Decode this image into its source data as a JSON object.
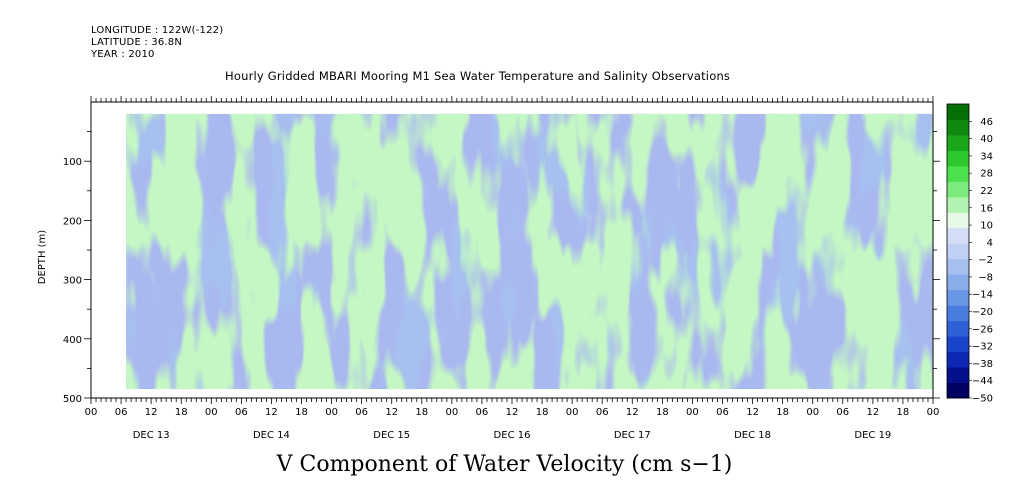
{
  "header": {
    "longitude": "LONGITUDE : 122W(-122)",
    "latitude": "LATITUDE : 36.8N",
    "year": "YEAR : 2010",
    "title": "Hourly Gridded MBARI Mooring M1 Sea Water Temperature and Salinity Observations",
    "bottom_title": "V Component of Water Velocity (cm s−1)"
  },
  "chart_data": {
    "type": "heatmap",
    "title": "Hourly Gridded MBARI Mooring M1 Sea Water Temperature and Salinity Observations",
    "variable": "V Component of Water Velocity (cm s−1)",
    "ylabel": "DEPTH (m)",
    "ylim": [
      500,
      0
    ],
    "y_reversed": true,
    "y_ticks": [
      100,
      200,
      300,
      400,
      500
    ],
    "x_start_hour": 0,
    "x_end_hour": 168,
    "x_hour_labels": [
      "00",
      "06",
      "12",
      "18",
      "00",
      "06",
      "12",
      "18",
      "00",
      "06",
      "12",
      "18",
      "00",
      "06",
      "12",
      "18",
      "00",
      "06",
      "12",
      "18",
      "00",
      "06",
      "12",
      "18",
      "00",
      "06",
      "12",
      "18",
      "00"
    ],
    "day_labels": [
      "DEC 13",
      "DEC 14",
      "DEC 15",
      "DEC 16",
      "DEC 17",
      "DEC 18",
      "DEC 19"
    ],
    "data_start_hour": 7,
    "data_depth_range": [
      20,
      485
    ],
    "colorbar": {
      "labels": [
        "46",
        "40",
        "34",
        "28",
        "22",
        "16",
        "10",
        "4",
        "-2",
        "-8",
        "-14",
        "-20",
        "-26",
        "-32",
        "-38",
        "-44",
        "-50"
      ],
      "range": [
        -50,
        52
      ],
      "colors": [
        "#010161",
        "#060f8c",
        "#0c28b4",
        "#1a44cc",
        "#2e60d8",
        "#4b7de0",
        "#6a96e6",
        "#8aaeea",
        "#a7bfef",
        "#c0cff4",
        "#d3ddf6",
        "#e6f8e6",
        "#b2f3b2",
        "#7eeb7e",
        "#4ee14e",
        "#2cc82c",
        "#1aa81a",
        "#0f8a0f",
        "#067006"
      ]
    }
  }
}
